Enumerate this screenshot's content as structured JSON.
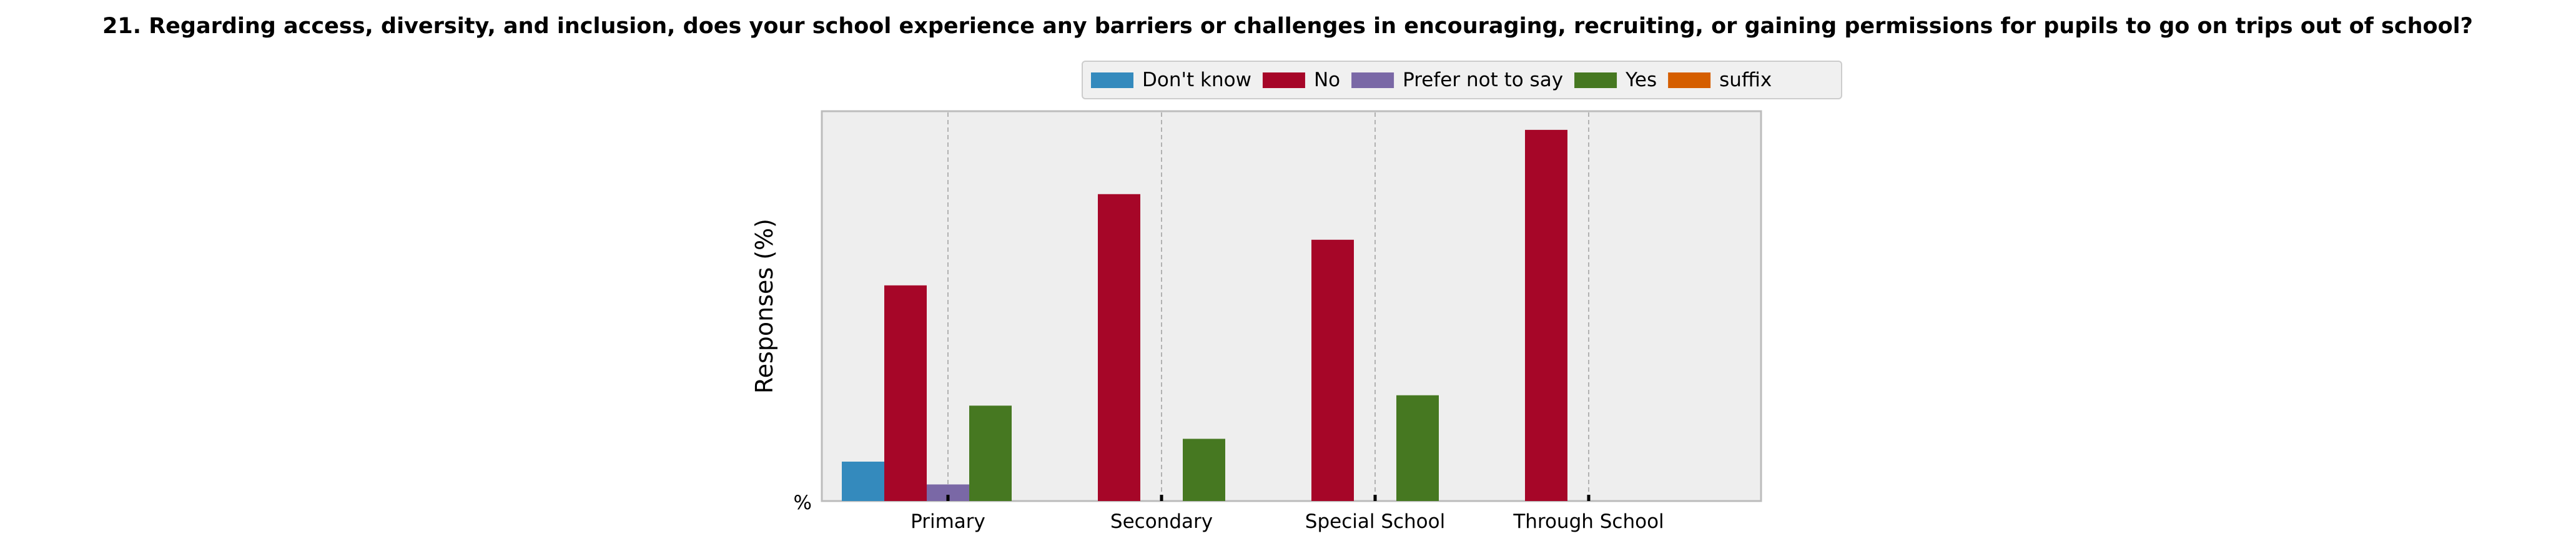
{
  "chart_data": {
    "type": "bar",
    "title": "21. Regarding access, diversity, and inclusion, does your school experience any barriers or challenges in encouraging, recruiting, or gaining permissions for pupils to go on trips out of school?",
    "xlabel": "",
    "ylabel": "Responses (%)",
    "ytick_label": "%",
    "categories": [
      "Primary",
      "Secondary",
      "Special School",
      "Through School"
    ],
    "series": [
      {
        "name": "Don't know",
        "color": "#348ABD",
        "values": [
          9.5,
          0,
          0,
          0
        ]
      },
      {
        "name": "No",
        "color": "#A60628",
        "values": [
          52,
          74,
          63,
          89.5
        ]
      },
      {
        "name": "Prefer not to say",
        "color": "#7A68A6",
        "values": [
          4,
          0,
          0,
          0
        ]
      },
      {
        "name": "Yes",
        "color": "#467821",
        "values": [
          23,
          15,
          25.5,
          0
        ]
      },
      {
        "name": "suffix",
        "color": "#D55E00",
        "values": [
          0,
          0,
          0,
          0
        ]
      }
    ],
    "ylim": [
      0,
      94
    ],
    "grid": true,
    "legend_position": "top-center"
  }
}
